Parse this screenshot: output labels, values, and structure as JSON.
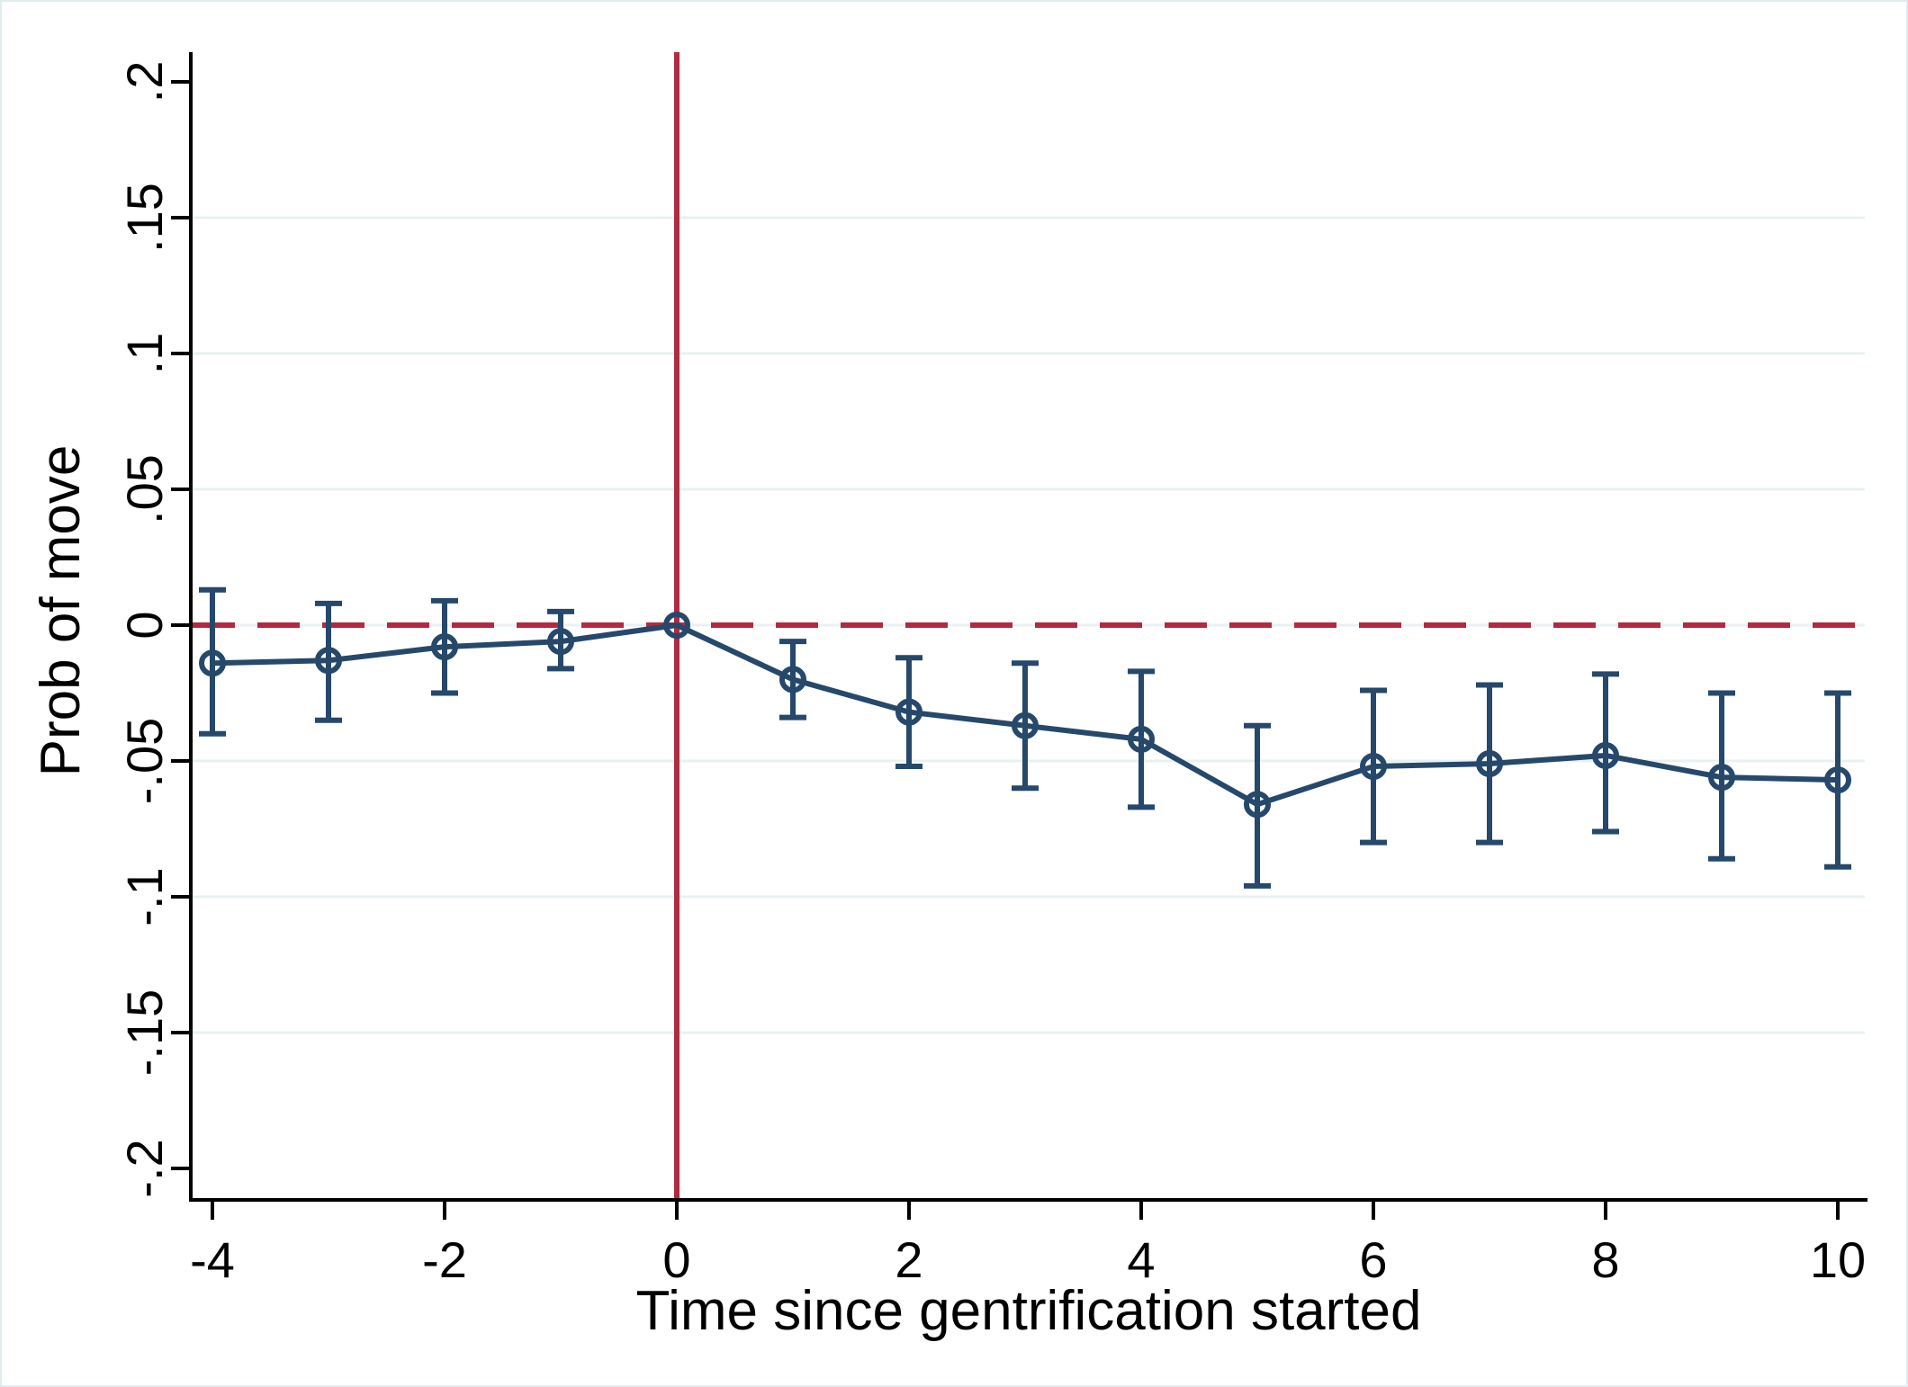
{
  "figure": {
    "background": "#ffffff",
    "border_color": "#e2ecee"
  },
  "chart_data": {
    "type": "line",
    "subtype": "event-study with 95% confidence intervals",
    "title": "",
    "xlabel": "Time since gentrification started",
    "ylabel": "Prob of move",
    "x_ticks": [
      -4,
      -2,
      0,
      2,
      4,
      6,
      8,
      10
    ],
    "x_tick_labels": [
      "-4",
      "-2",
      "0",
      "2",
      "4",
      "6",
      "8",
      "10"
    ],
    "y_ticks": [
      0.2,
      0.15,
      0.1,
      0.05,
      0,
      -0.05,
      -0.1,
      -0.15,
      -0.2
    ],
    "y_tick_labels": [
      ".2",
      ".15",
      ".1",
      ".05",
      "0",
      "-.05",
      "-.1",
      "-.15",
      "-.2"
    ],
    "xlim": [
      -4.2,
      10.3
    ],
    "ylim": [
      -0.21,
      0.21
    ],
    "grid": "horizontal",
    "grid_y_values": [
      0.15,
      0.1,
      0.05,
      0,
      -0.05,
      -0.1,
      -0.15
    ],
    "legend": "none",
    "reference_lines": {
      "horizontal_dashed_y": 0,
      "vertical_solid_x": 0
    },
    "series": [
      {
        "name": "estimated probability of move",
        "marker": "hollow-circle",
        "x": [
          -4,
          -3,
          -2,
          -1,
          0,
          1,
          2,
          3,
          4,
          5,
          6,
          7,
          8,
          9,
          10
        ],
        "estimates": [
          -0.014,
          -0.013,
          -0.008,
          -0.006,
          0,
          -0.02,
          -0.032,
          -0.037,
          -0.042,
          -0.066,
          -0.052,
          -0.051,
          -0.048,
          -0.056,
          -0.057
        ],
        "ci_low": [
          -0.04,
          -0.035,
          -0.025,
          -0.016,
          null,
          -0.034,
          -0.052,
          -0.06,
          -0.067,
          -0.096,
          -0.08,
          -0.08,
          -0.076,
          -0.086,
          -0.089
        ],
        "ci_high": [
          0.013,
          0.008,
          0.009,
          0.005,
          null,
          -0.006,
          -0.012,
          -0.014,
          -0.017,
          -0.037,
          -0.024,
          -0.022,
          -0.018,
          -0.025,
          -0.025
        ]
      }
    ],
    "colors": {
      "estimate": "#26486b",
      "reference": "#b12a40",
      "grid": "#e8f1f2",
      "axis": "#000000"
    }
  }
}
